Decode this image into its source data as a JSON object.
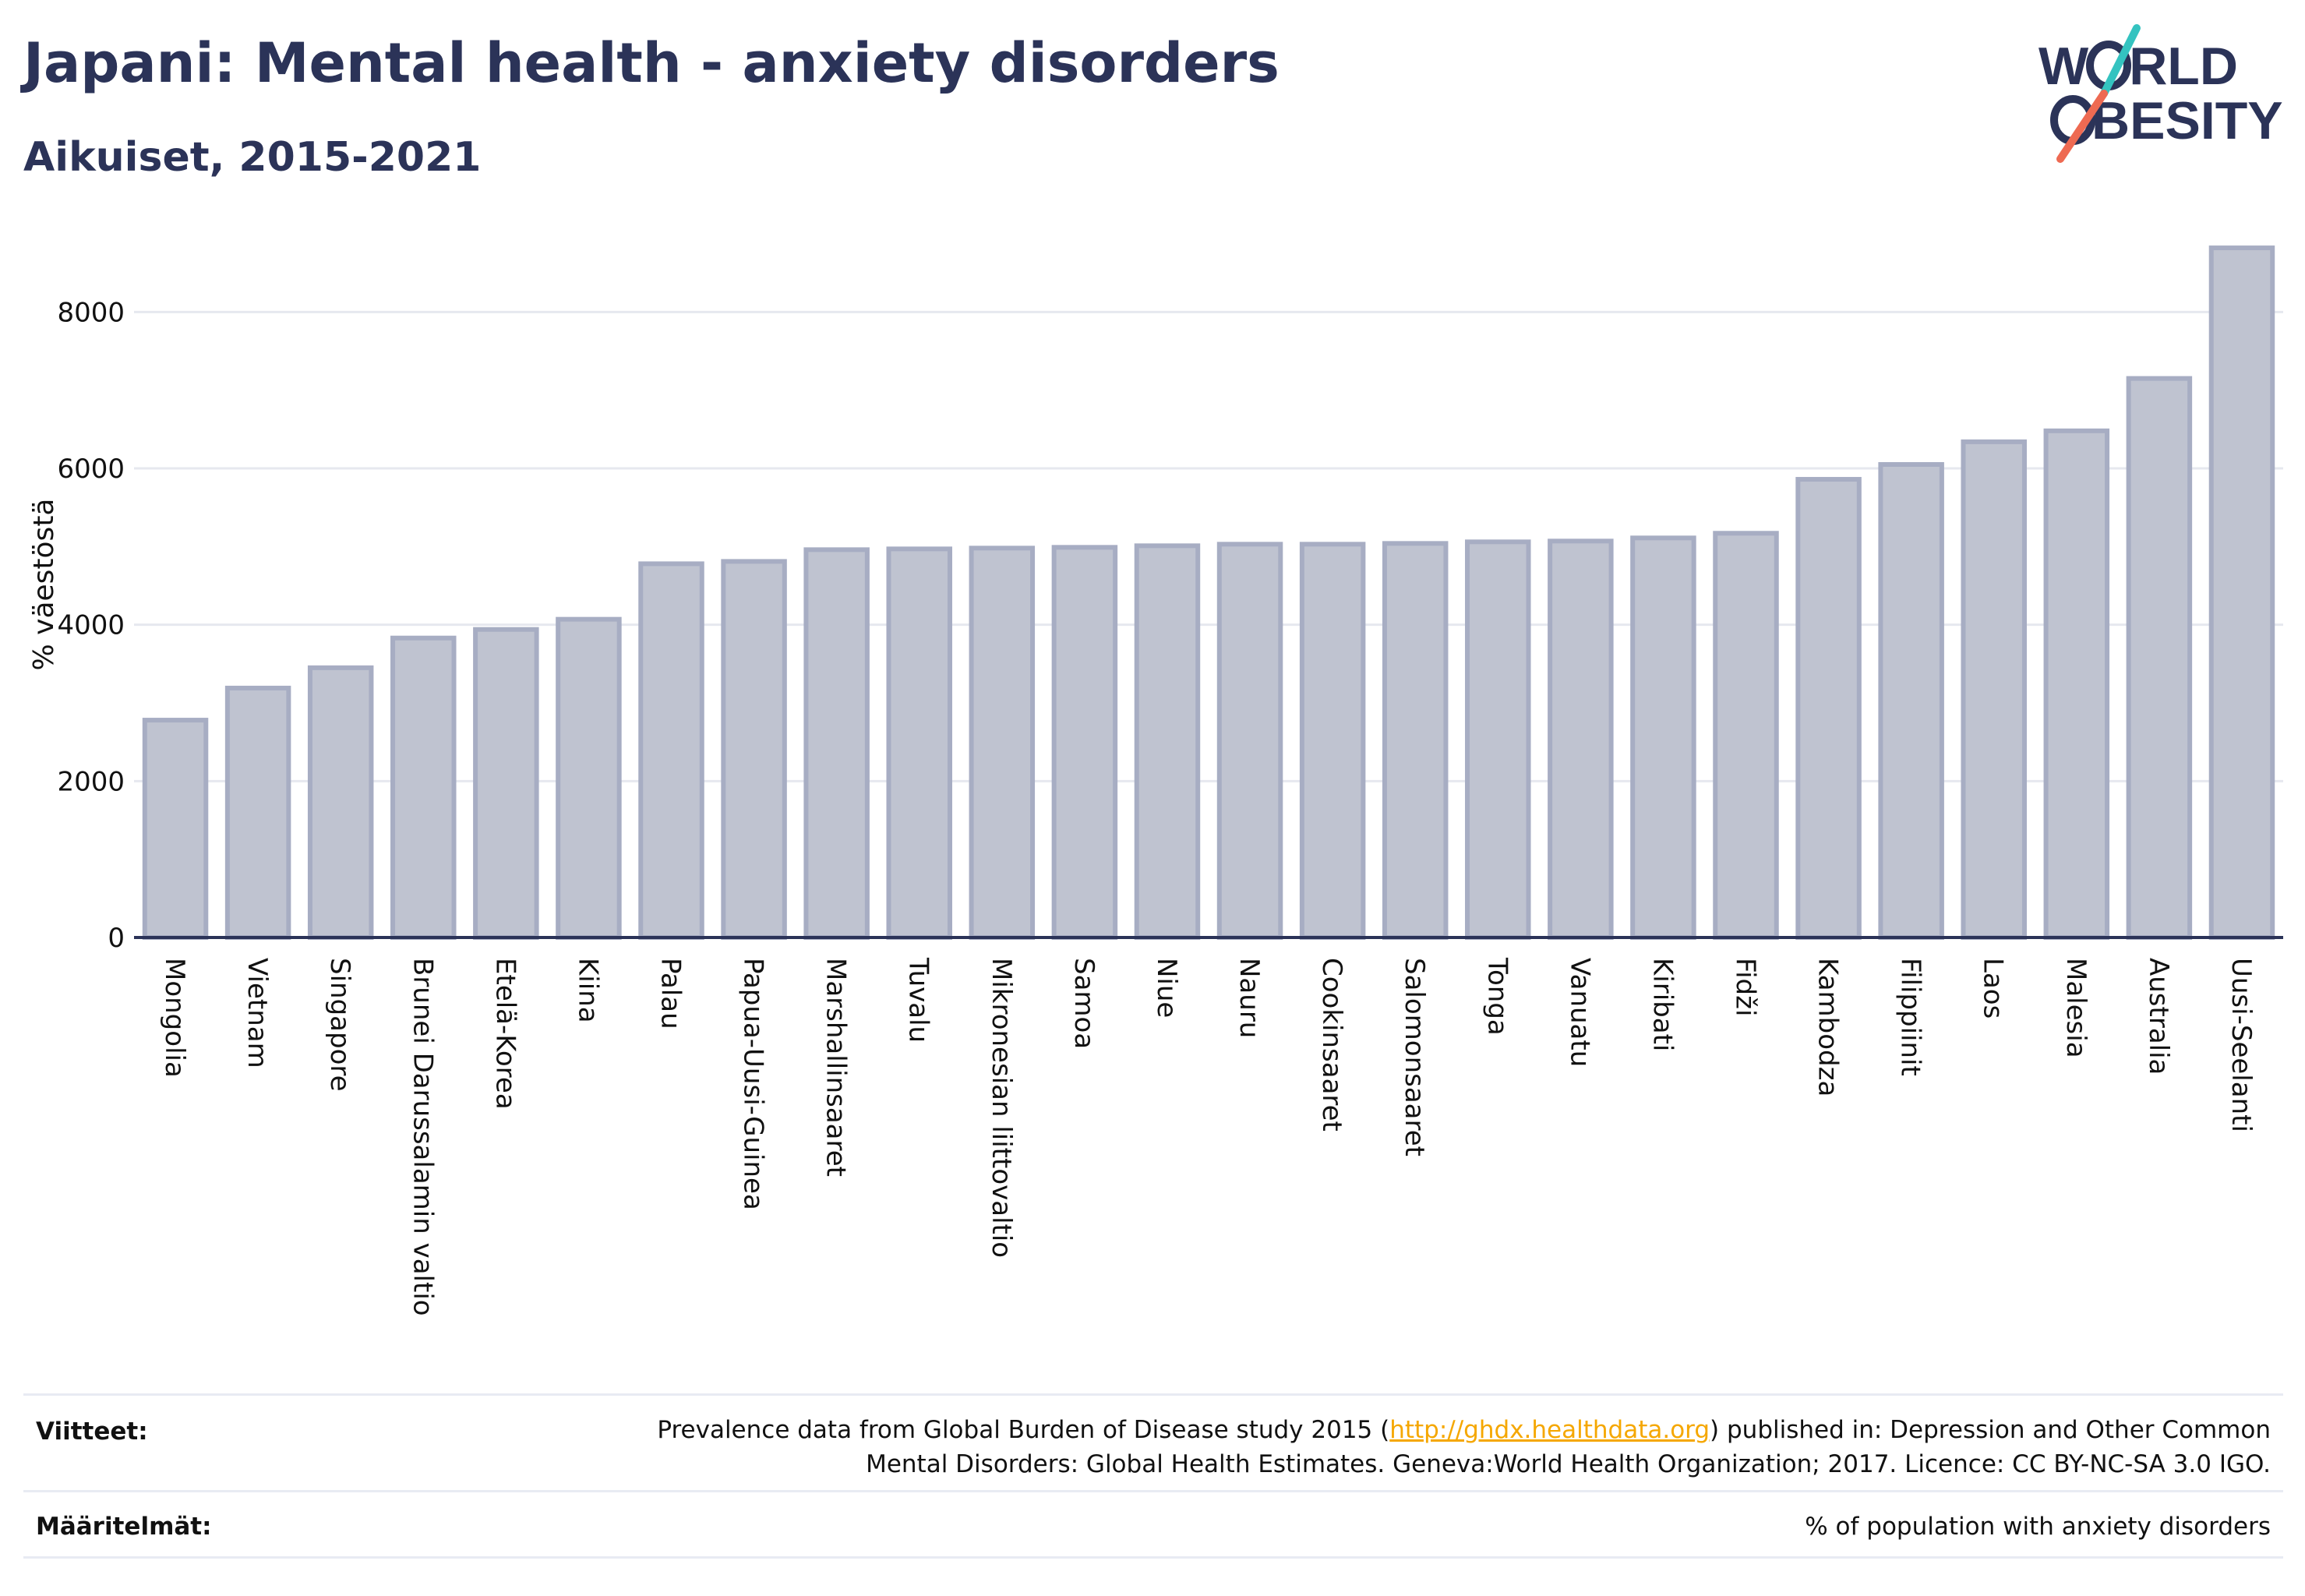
{
  "title": "Japani: Mental health - anxiety disorders",
  "subtitle": "Aikuiset, 2015-2021",
  "logo": {
    "line1": "W",
    "line1b": "RLD",
    "line2": "BESITY"
  },
  "colors": {
    "title": "#2b3358",
    "bar_fill": "#bfc3d0",
    "bar_stroke": "#a7adc3",
    "axis": "#2b3358",
    "grid": "#e6e8ef",
    "link": "#f5a700",
    "logo_teal": "#34c3c0",
    "logo_coral": "#ee6a52"
  },
  "chart_data": {
    "type": "bar",
    "ylabel": "% väestöstä",
    "ylim": [
      0,
      9000
    ],
    "yticks": [
      0,
      2000,
      4000,
      6000,
      8000
    ],
    "grid": true,
    "categories": [
      "Mongolia",
      "Vietnam",
      "Singapore",
      "Brunei Darussalamin valtio",
      "Etelä-Korea",
      "Kiina",
      "Palau",
      "Papua-Uusi-Guinea",
      "Marshallinsaaret",
      "Tuvalu",
      "Mikronesian liittovaltio",
      "Samoa",
      "Niue",
      "Nauru",
      "Cookinsaaret",
      "Salomonsaaret",
      "Tonga",
      "Vanuatu",
      "Kiribati",
      "Fidži",
      "Kambodza",
      "Filippiinit",
      "Laos",
      "Malesia",
      "Australia",
      "Uusi-Seelanti"
    ],
    "values": [
      2780,
      3190,
      3450,
      3830,
      3940,
      4070,
      4780,
      4810,
      4960,
      4970,
      4980,
      4990,
      5010,
      5030,
      5030,
      5040,
      5060,
      5070,
      5110,
      5170,
      5860,
      6050,
      6340,
      6480,
      7150,
      8820
    ]
  },
  "footer": {
    "references_label": "Viitteet:",
    "references_pre": "Prevalence data from Global Burden of Disease study 2015 (",
    "references_link": "http://ghdx.healthdata.org",
    "references_post1": ") published in: Depression and Other Common",
    "references_line2": "Mental Disorders: Global Health Estimates. Geneva:World Health Organization; 2017. Licence: CC BY-NC-SA 3.0 IGO.",
    "definitions_label": "Määritelmät:",
    "definitions_text": "% of population with anxiety disorders"
  }
}
